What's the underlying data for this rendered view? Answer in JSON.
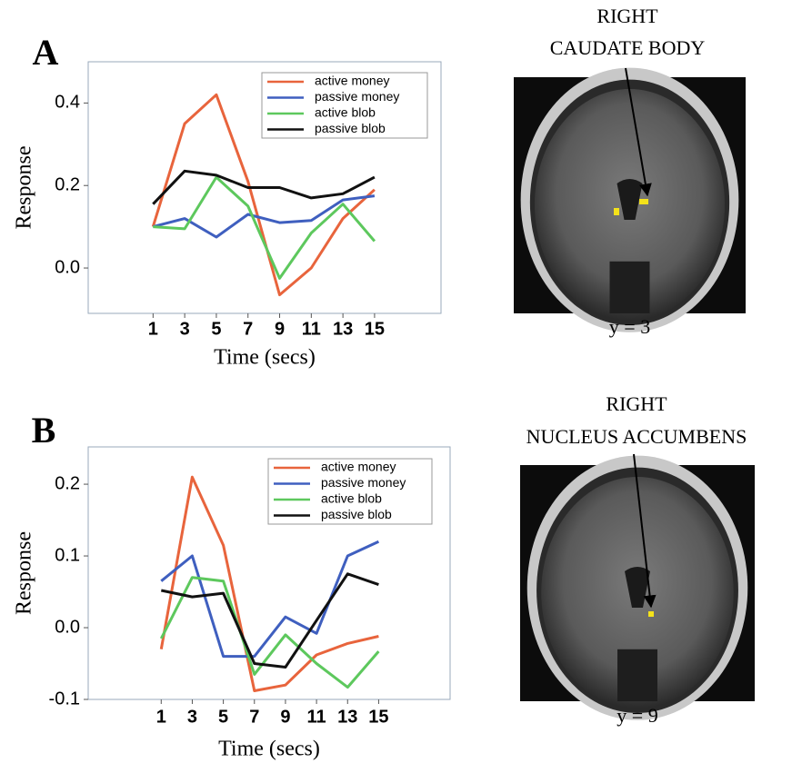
{
  "chart_data": [
    {
      "type": "line",
      "panel": "A",
      "xlabel": "Time (secs)",
      "ylabel": "Response",
      "region_label": [
        "RIGHT",
        "CAUDATE BODY"
      ],
      "slice_label": "y = 3",
      "x": [
        1,
        3,
        5,
        7,
        9,
        11,
        13,
        15
      ],
      "xlim": [
        -3.1,
        19.2
      ],
      "xticks": [
        1,
        3,
        5,
        7,
        9,
        11,
        13,
        15
      ],
      "ylim": [
        -0.11,
        0.5
      ],
      "yticks": [
        {
          "value": 0,
          "label": "0.0"
        },
        0.2,
        0.4
      ],
      "legend": "upper right",
      "series": [
        {
          "name": "active money",
          "color": "#e8643c",
          "values": [
            0.1,
            0.35,
            0.42,
            0.21,
            -0.065,
            0.0,
            0.12,
            0.19
          ]
        },
        {
          "name": "passive money",
          "color": "#3f5fbf",
          "values": [
            0.1,
            0.12,
            0.075,
            0.13,
            0.11,
            0.115,
            0.165,
            0.175
          ]
        },
        {
          "name": "active blob",
          "color": "#5dc85d",
          "values": [
            0.1,
            0.095,
            0.22,
            0.15,
            -0.025,
            0.085,
            0.155,
            0.065
          ]
        },
        {
          "name": "passive blob",
          "color": "#111111",
          "values": [
            0.155,
            0.235,
            0.225,
            0.195,
            0.195,
            0.17,
            0.18,
            0.22
          ]
        }
      ]
    },
    {
      "type": "line",
      "panel": "B",
      "xlabel": "Time (secs)",
      "ylabel": "Response",
      "region_label": [
        "RIGHT",
        "NUCLEUS ACCUMBENS"
      ],
      "slice_label": "y = 9",
      "x": [
        1,
        3,
        5,
        7,
        9,
        11,
        13,
        15
      ],
      "xlim": [
        -3.7,
        19.6
      ],
      "xticks": [
        1,
        3,
        5,
        7,
        9,
        11,
        13,
        15
      ],
      "ylim": [
        -0.1,
        0.252
      ],
      "yticks": [
        -0.1,
        {
          "value": 0,
          "label": "0.0"
        },
        0.1,
        0.2
      ],
      "legend": "upper right",
      "series": [
        {
          "name": "active money",
          "color": "#e8643c",
          "values": [
            -0.03,
            0.21,
            0.115,
            -0.088,
            -0.08,
            -0.038,
            -0.022,
            -0.012
          ]
        },
        {
          "name": "passive money",
          "color": "#3f5fbf",
          "values": [
            0.065,
            0.1,
            -0.04,
            -0.04,
            0.015,
            -0.008,
            0.1,
            0.12
          ]
        },
        {
          "name": "active blob",
          "color": "#5dc85d",
          "values": [
            -0.015,
            0.07,
            0.065,
            -0.065,
            -0.01,
            -0.05,
            -0.083,
            -0.033
          ]
        },
        {
          "name": "passive blob",
          "color": "#111111",
          "values": [
            0.052,
            0.043,
            0.048,
            -0.05,
            -0.055,
            0.01,
            0.075,
            0.06
          ]
        }
      ]
    }
  ]
}
